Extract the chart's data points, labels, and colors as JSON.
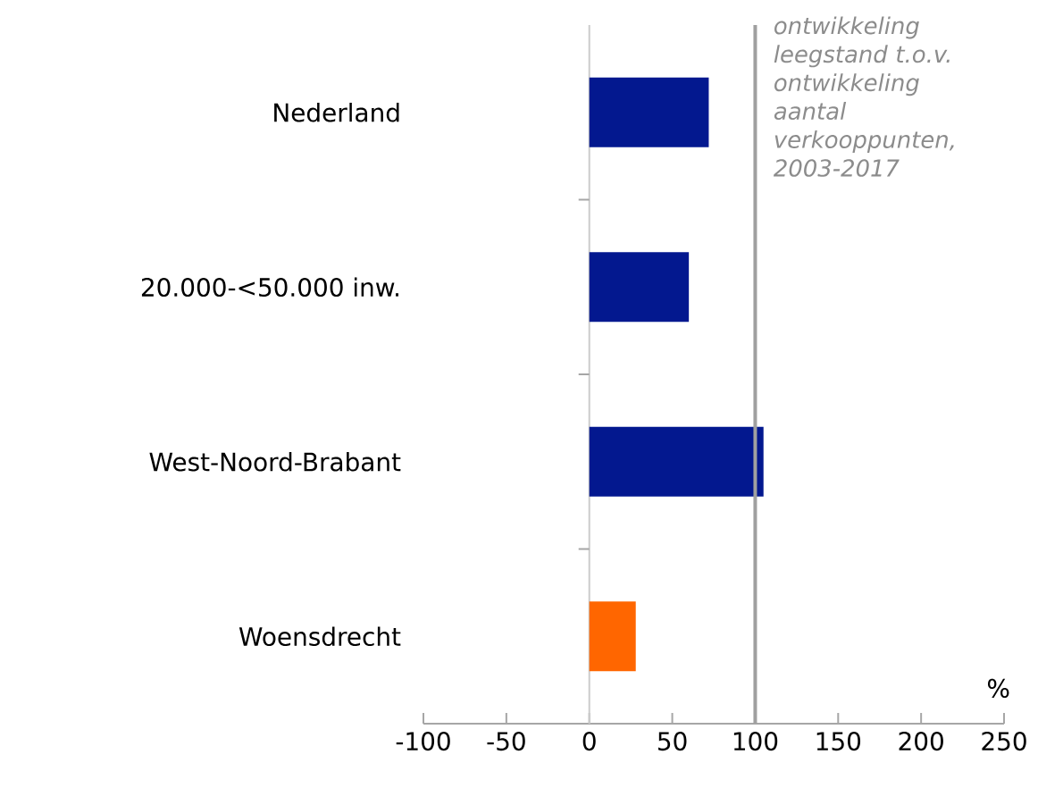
{
  "chart_data": {
    "type": "bar",
    "orientation": "horizontal",
    "xlabel": "%",
    "categories": [
      "Nederland",
      "20.000-<50.000 inw.",
      "West-Noord-Brabant",
      "Woensdrecht"
    ],
    "values": [
      72,
      60,
      105,
      28
    ],
    "colors": [
      "#03188f",
      "#03188f",
      "#03188f",
      "#ff6600"
    ],
    "xlim": [
      -100,
      250
    ],
    "xticks": [
      -100,
      -50,
      0,
      50,
      100,
      150,
      200,
      250
    ],
    "ref_lines": [
      {
        "axis": "x",
        "value": 100,
        "label": "ontwikkeling leegstand t.o.v. ontwikkeling aantal verkooppunten, 2003-2017",
        "color": "#a0a0a0"
      }
    ]
  }
}
